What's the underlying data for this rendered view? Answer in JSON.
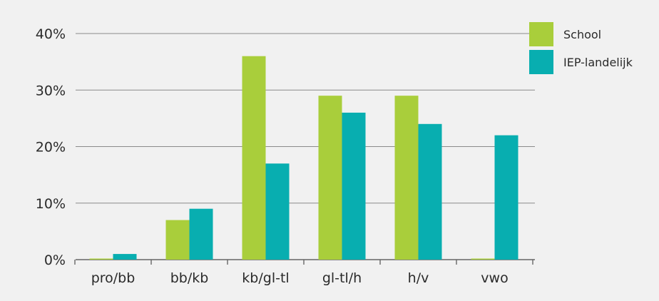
{
  "chart_data": {
    "type": "bar",
    "categories": [
      "pro/bb",
      "bb/kb",
      "kb/gl-tl",
      "gl-tl/h",
      "h/v",
      "vwo"
    ],
    "series": [
      {
        "name": "School",
        "values": [
          0,
          7,
          36,
          29,
          29,
          0
        ]
      },
      {
        "name": "IEP-landelijk",
        "values": [
          1,
          9,
          17,
          26,
          24,
          22
        ]
      }
    ],
    "y_ticks": [
      "0%",
      "10%",
      "20%",
      "30%",
      "40%"
    ],
    "ylim": [
      0,
      40
    ],
    "grid": true,
    "legend_position": "top-right",
    "colors": {
      "School": "#a9ce3b",
      "IEP-landelijk": "#08aeb0",
      "background": "#f1f1f1",
      "grid": "#8a8a8a"
    }
  }
}
